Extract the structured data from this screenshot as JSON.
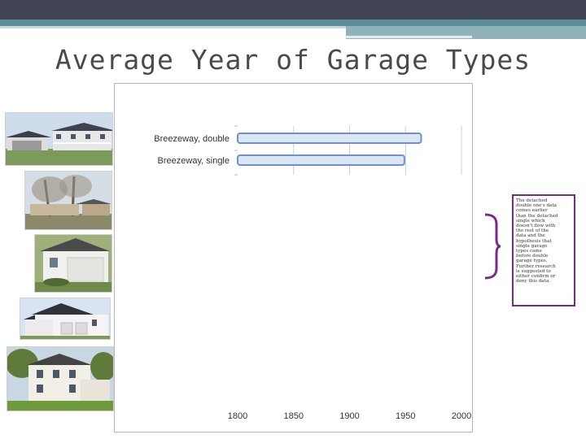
{
  "slide": {
    "title": "Average Year of Garage Types",
    "note": "The detached double one's data comes earlier than the detached single which doesn't flow with the rest of the data and the hypothesis that single garage types came before double garage types. Further research is suggested to either confirm or deny this data."
  },
  "photos": [
    {
      "name": "house-photo-breezeway-double"
    },
    {
      "name": "house-photo-breezeway-single"
    },
    {
      "name": "house-photo-detached-garage"
    },
    {
      "name": "house-photo-attached-garage"
    },
    {
      "name": "house-photo-colonial"
    }
  ],
  "colors": {
    "accent_dark": "#404452",
    "accent_teal": "#5a8f97",
    "note_border": "#7b2a8a",
    "bar_fill": "#dbe6f5",
    "bar_stroke": "#6f8fd0"
  },
  "chart_data": {
    "type": "bar",
    "orientation": "horizontal",
    "categories": [
      "Breezeway, double",
      "Breezeway, single"
    ],
    "values": [
      1964,
      1949
    ],
    "xlim": [
      1800,
      2000
    ],
    "xticks": [
      1800,
      1850,
      1900,
      1950,
      2000
    ],
    "grid": true
  }
}
